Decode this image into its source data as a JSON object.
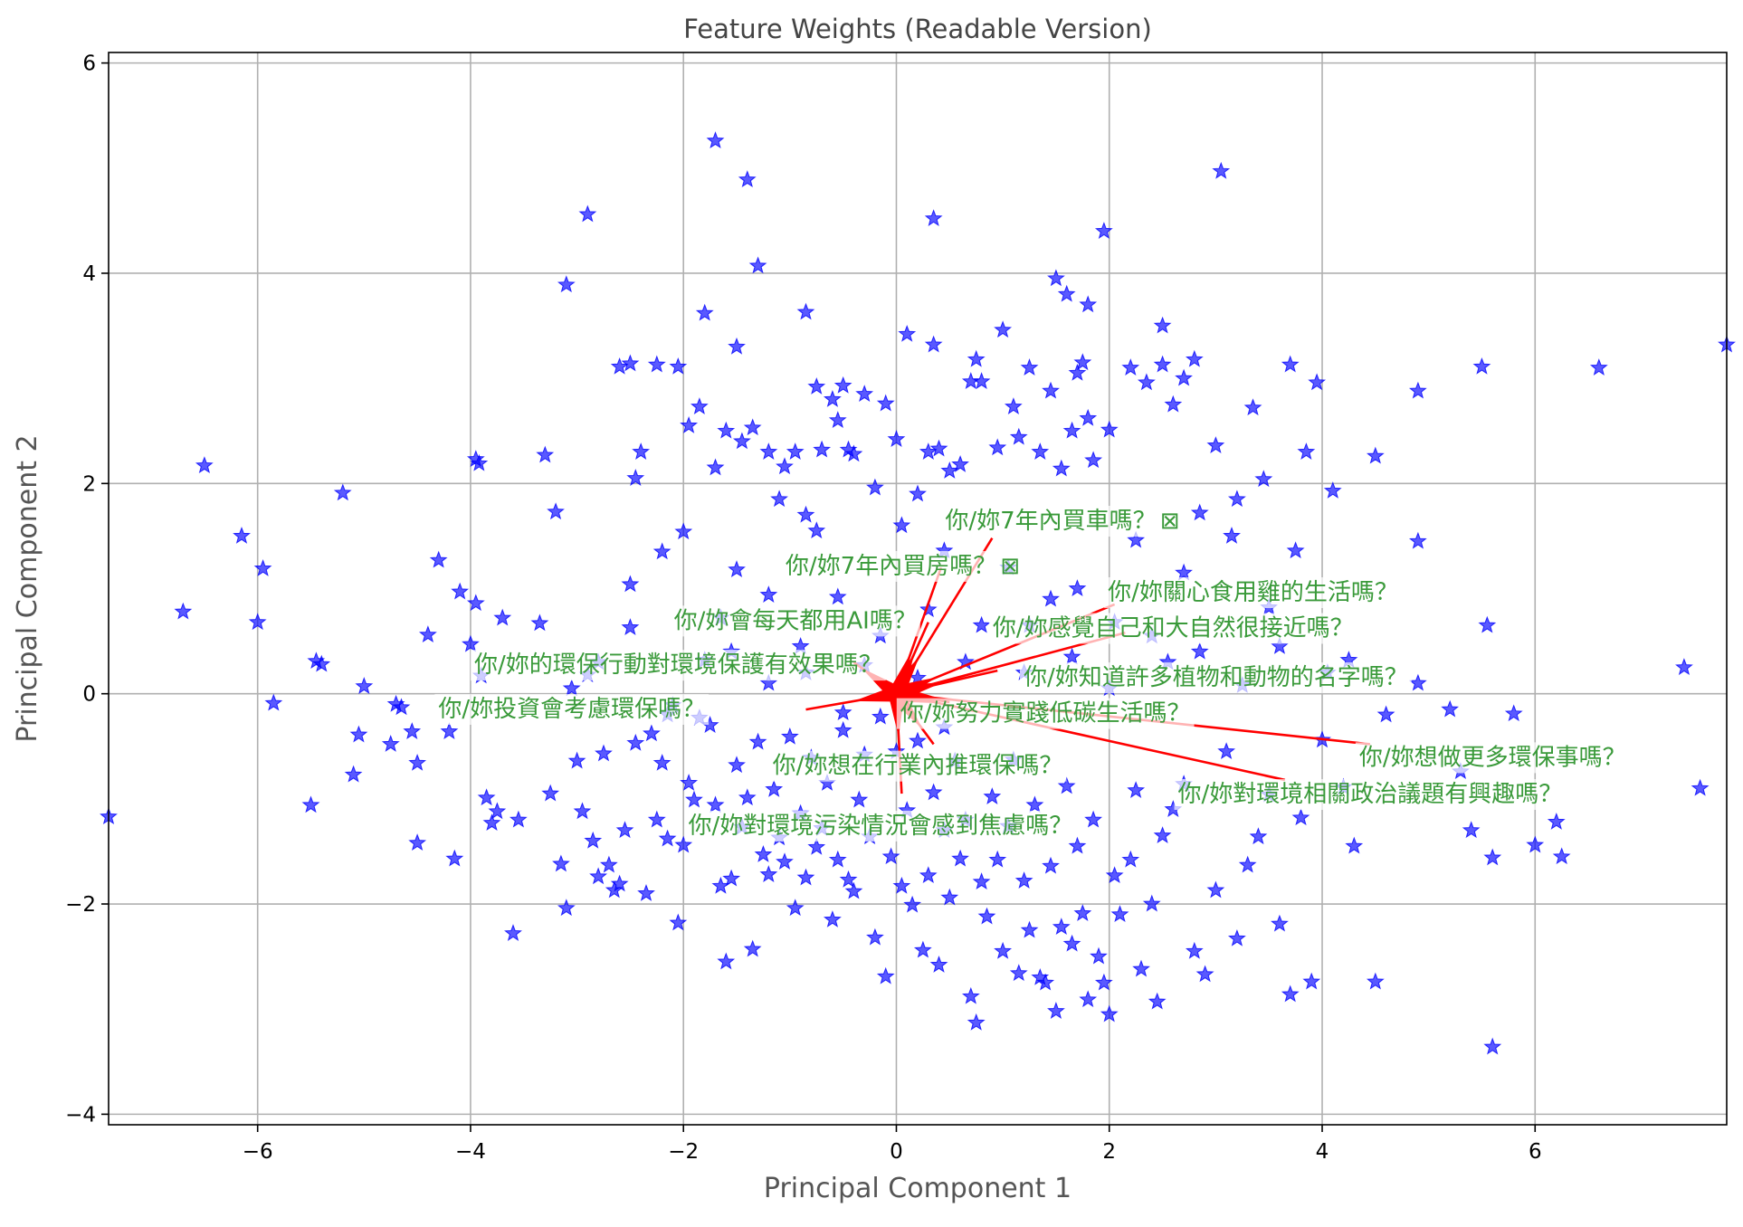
{
  "chart_data": {
    "type": "scatter",
    "title": "Feature Weights (Readable Version)",
    "xlabel": "Principal Component 1",
    "ylabel": "Principal Component 2",
    "xlim": [
      -7.4,
      7.8
    ],
    "ylim": [
      -4.1,
      6.1
    ],
    "xticks": [
      -6,
      -4,
      -2,
      0,
      2,
      4,
      6
    ],
    "yticks": [
      -4,
      -2,
      0,
      2,
      4,
      6
    ],
    "grid": true,
    "colors": {
      "points": "#0000ff",
      "arrows": "#ff0000",
      "labels": "#3a9a3a",
      "grid": "#b0b0b0"
    },
    "points_marker": "star",
    "points": [
      [
        -7.4,
        -1.17
      ],
      [
        -6.7,
        0.78
      ],
      [
        -6.5,
        2.17
      ],
      [
        -6.15,
        1.5
      ],
      [
        -6.0,
        0.68
      ],
      [
        -5.95,
        1.19
      ],
      [
        -5.85,
        -0.09
      ],
      [
        -5.5,
        -1.06
      ],
      [
        -5.45,
        0.31
      ],
      [
        -5.4,
        0.28
      ],
      [
        -5.2,
        1.91
      ],
      [
        -5.1,
        -0.77
      ],
      [
        -5.05,
        -0.39
      ],
      [
        -5.0,
        0.07
      ],
      [
        -4.75,
        -0.48
      ],
      [
        -4.7,
        -0.1
      ],
      [
        -4.65,
        -0.13
      ],
      [
        -4.55,
        -0.36
      ],
      [
        -4.5,
        -1.42
      ],
      [
        -4.5,
        -0.66
      ],
      [
        -4.4,
        0.56
      ],
      [
        -4.3,
        1.27
      ],
      [
        -4.2,
        -0.36
      ],
      [
        -4.15,
        -1.57
      ],
      [
        -4.1,
        0.97
      ],
      [
        -4.0,
        0.47
      ],
      [
        -3.95,
        0.86
      ],
      [
        -3.95,
        2.23
      ],
      [
        -3.92,
        2.19
      ],
      [
        -3.9,
        0.17
      ],
      [
        -3.85,
        -0.99
      ],
      [
        -3.8,
        -1.23
      ],
      [
        -3.75,
        -1.12
      ],
      [
        -3.7,
        0.72
      ],
      [
        -3.6,
        -2.28
      ],
      [
        -3.55,
        -1.2
      ],
      [
        -3.35,
        0.67
      ],
      [
        -3.3,
        2.27
      ],
      [
        -3.25,
        -0.95
      ],
      [
        -3.2,
        1.73
      ],
      [
        -3.15,
        -1.62
      ],
      [
        -3.1,
        -2.04
      ],
      [
        -3.05,
        0.05
      ],
      [
        -3.0,
        -0.64
      ],
      [
        -2.95,
        -1.12
      ],
      [
        -2.9,
        0.18
      ],
      [
        -2.85,
        -1.4
      ],
      [
        -2.8,
        -1.74
      ],
      [
        -2.75,
        -0.57
      ],
      [
        -2.7,
        -1.63
      ],
      [
        -2.65,
        -1.87
      ],
      [
        -2.6,
        -1.81
      ],
      [
        -2.55,
        -1.3
      ],
      [
        -2.5,
        1.04
      ],
      [
        -2.45,
        -0.47
      ],
      [
        -2.4,
        2.3
      ],
      [
        -2.35,
        -1.9
      ],
      [
        -2.3,
        -0.38
      ],
      [
        -2.25,
        -1.2
      ],
      [
        -2.2,
        -0.66
      ],
      [
        -2.15,
        -1.38
      ],
      [
        -2.1,
        -0.11
      ],
      [
        -2.05,
        -2.18
      ],
      [
        -2.0,
        -1.44
      ],
      [
        -1.95,
        -0.85
      ],
      [
        -1.9,
        -1.01
      ],
      [
        -1.85,
        -0.23
      ],
      [
        -1.8,
        0.32
      ],
      [
        -1.75,
        -0.3
      ],
      [
        -1.7,
        -1.06
      ],
      [
        -1.65,
        -1.83
      ],
      [
        -1.6,
        -2.55
      ],
      [
        -1.55,
        -1.76
      ],
      [
        -1.5,
        -0.68
      ],
      [
        -1.45,
        -1.27
      ],
      [
        -1.4,
        -0.99
      ],
      [
        -1.35,
        -2.43
      ],
      [
        -1.3,
        -0.46
      ],
      [
        -1.25,
        -1.53
      ],
      [
        -1.2,
        -1.72
      ],
      [
        -1.15,
        -0.91
      ],
      [
        -1.1,
        -1.37
      ],
      [
        -1.05,
        -1.6
      ],
      [
        -1.0,
        -0.41
      ],
      [
        -0.95,
        -2.04
      ],
      [
        -0.9,
        -1.14
      ],
      [
        -0.85,
        -1.75
      ],
      [
        -0.8,
        -0.61
      ],
      [
        -0.75,
        -1.46
      ],
      [
        -0.7,
        -1.28
      ],
      [
        -0.65,
        -0.85
      ],
      [
        -0.6,
        -2.15
      ],
      [
        -0.55,
        -1.58
      ],
      [
        -0.5,
        -0.18
      ],
      [
        -0.45,
        -1.77
      ],
      [
        -0.4,
        -1.88
      ],
      [
        -0.35,
        -1.01
      ],
      [
        -0.3,
        -0.58
      ],
      [
        -0.25,
        -1.36
      ],
      [
        -0.2,
        -2.32
      ],
      [
        -0.15,
        -0.22
      ],
      [
        -0.1,
        -2.69
      ],
      [
        -0.05,
        -1.55
      ],
      [
        0.0,
        -0.55
      ],
      [
        0.05,
        -1.83
      ],
      [
        0.1,
        -1.11
      ],
      [
        0.15,
        -2.01
      ],
      [
        0.2,
        -0.45
      ],
      [
        0.25,
        -2.44
      ],
      [
        0.3,
        -1.73
      ],
      [
        0.35,
        -0.94
      ],
      [
        0.4,
        -2.58
      ],
      [
        0.45,
        -1.3
      ],
      [
        0.5,
        -1.94
      ],
      [
        0.55,
        -0.64
      ],
      [
        0.6,
        -1.57
      ],
      [
        0.65,
        -1.2
      ],
      [
        0.7,
        -2.88
      ],
      [
        0.75,
        -3.13
      ],
      [
        0.8,
        -1.79
      ],
      [
        0.85,
        -2.12
      ],
      [
        0.9,
        -0.98
      ],
      [
        0.95,
        -1.58
      ],
      [
        1.0,
        -2.45
      ],
      [
        1.05,
        -1.26
      ],
      [
        1.1,
        -0.63
      ],
      [
        1.15,
        -2.66
      ],
      [
        1.2,
        -1.78
      ],
      [
        1.25,
        -2.25
      ],
      [
        1.3,
        -1.06
      ],
      [
        1.35,
        -2.7
      ],
      [
        1.4,
        -2.75
      ],
      [
        1.45,
        -1.64
      ],
      [
        1.5,
        -3.02
      ],
      [
        1.55,
        -2.22
      ],
      [
        1.6,
        -0.88
      ],
      [
        1.65,
        -2.38
      ],
      [
        1.7,
        -1.45
      ],
      [
        1.75,
        -2.09
      ],
      [
        1.8,
        -2.91
      ],
      [
        1.85,
        -1.2
      ],
      [
        1.9,
        -2.5
      ],
      [
        1.95,
        -2.75
      ],
      [
        2.0,
        -3.05
      ],
      [
        2.05,
        -1.73
      ],
      [
        2.1,
        -2.1
      ],
      [
        2.2,
        -1.58
      ],
      [
        2.25,
        -0.92
      ],
      [
        2.3,
        -2.62
      ],
      [
        2.4,
        -2.0
      ],
      [
        2.45,
        -2.93
      ],
      [
        2.5,
        -1.35
      ],
      [
        2.6,
        -1.1
      ],
      [
        2.7,
        -0.86
      ],
      [
        2.8,
        -2.45
      ],
      [
        2.9,
        -2.67
      ],
      [
        3.0,
        -1.87
      ],
      [
        3.1,
        -0.55
      ],
      [
        3.2,
        -2.33
      ],
      [
        3.3,
        -1.63
      ],
      [
        3.4,
        -1.36
      ],
      [
        3.5,
        -0.96
      ],
      [
        3.6,
        -2.19
      ],
      [
        3.7,
        -2.86
      ],
      [
        3.8,
        -1.18
      ],
      [
        3.9,
        -2.74
      ],
      [
        4.0,
        -0.44
      ],
      [
        4.2,
        -0.89
      ],
      [
        4.3,
        -1.45
      ],
      [
        4.5,
        -2.74
      ],
      [
        4.6,
        -0.2
      ],
      [
        5.2,
        -0.15
      ],
      [
        5.3,
        -0.74
      ],
      [
        5.4,
        -1.3
      ],
      [
        5.6,
        -3.36
      ],
      [
        5.6,
        -1.56
      ],
      [
        5.8,
        -0.19
      ],
      [
        6.0,
        -1.44
      ],
      [
        6.2,
        -1.22
      ],
      [
        6.25,
        -1.55
      ],
      [
        7.4,
        0.25
      ],
      [
        7.55,
        -0.9
      ],
      [
        -2.9,
        4.56
      ],
      [
        -3.1,
        3.89
      ],
      [
        -2.6,
        3.11
      ],
      [
        -2.5,
        3.14
      ],
      [
        -2.25,
        3.13
      ],
      [
        -2.05,
        3.11
      ],
      [
        -1.95,
        2.55
      ],
      [
        -1.85,
        2.73
      ],
      [
        -1.8,
        3.62
      ],
      [
        -1.7,
        2.15
      ],
      [
        -1.6,
        2.5
      ],
      [
        -1.5,
        3.3
      ],
      [
        -1.45,
        2.4
      ],
      [
        -1.35,
        2.53
      ],
      [
        -1.3,
        4.07
      ],
      [
        -1.2,
        2.3
      ],
      [
        -1.1,
        1.85
      ],
      [
        -1.05,
        2.16
      ],
      [
        -0.95,
        2.3
      ],
      [
        -0.85,
        1.7
      ],
      [
        -0.85,
        3.63
      ],
      [
        -0.75,
        2.92
      ],
      [
        -0.7,
        2.32
      ],
      [
        -0.6,
        2.8
      ],
      [
        -0.55,
        2.6
      ],
      [
        -0.5,
        2.93
      ],
      [
        -0.45,
        2.32
      ],
      [
        -0.4,
        2.28
      ],
      [
        -0.3,
        2.85
      ],
      [
        -0.2,
        1.96
      ],
      [
        -0.1,
        2.76
      ],
      [
        0.0,
        2.42
      ],
      [
        0.1,
        3.42
      ],
      [
        0.2,
        1.9
      ],
      [
        0.3,
        2.3
      ],
      [
        0.35,
        3.32
      ],
      [
        0.4,
        2.33
      ],
      [
        0.5,
        2.12
      ],
      [
        0.6,
        2.18
      ],
      [
        0.7,
        2.97
      ],
      [
        0.75,
        3.18
      ],
      [
        0.8,
        2.97
      ],
      [
        0.95,
        2.34
      ],
      [
        1.0,
        3.46
      ],
      [
        1.1,
        2.73
      ],
      [
        1.15,
        2.44
      ],
      [
        1.25,
        3.1
      ],
      [
        1.35,
        2.3
      ],
      [
        1.45,
        2.88
      ],
      [
        1.55,
        2.14
      ],
      [
        1.65,
        2.5
      ],
      [
        1.7,
        3.05
      ],
      [
        1.75,
        3.15
      ],
      [
        1.8,
        2.62
      ],
      [
        1.85,
        2.22
      ],
      [
        2.0,
        2.51
      ],
      [
        2.2,
        3.1
      ],
      [
        2.35,
        2.96
      ],
      [
        2.5,
        3.13
      ],
      [
        2.6,
        2.75
      ],
      [
        2.7,
        3.0
      ],
      [
        2.8,
        3.18
      ],
      [
        3.0,
        2.36
      ],
      [
        3.2,
        1.85
      ],
      [
        3.35,
        2.72
      ],
      [
        3.45,
        2.04
      ],
      [
        3.7,
        3.13
      ],
      [
        3.85,
        2.3
      ],
      [
        3.95,
        2.96
      ],
      [
        4.1,
        1.93
      ],
      [
        4.5,
        2.26
      ],
      [
        4.9,
        2.88
      ],
      [
        5.5,
        3.11
      ],
      [
        6.6,
        3.1
      ],
      [
        7.8,
        3.32
      ],
      [
        -1.7,
        5.26
      ],
      [
        -1.4,
        4.89
      ],
      [
        0.35,
        4.52
      ],
      [
        1.95,
        4.4
      ],
      [
        3.05,
        4.97
      ],
      [
        1.5,
        3.95
      ],
      [
        1.6,
        3.8
      ],
      [
        1.8,
        3.7
      ],
      [
        2.5,
        3.5
      ],
      [
        -2.45,
        2.05
      ],
      [
        -2.2,
        1.35
      ],
      [
        -2.0,
        1.54
      ],
      [
        -1.65,
        0.72
      ],
      [
        -1.5,
        1.18
      ],
      [
        -1.2,
        0.94
      ],
      [
        -0.9,
        0.45
      ],
      [
        -0.75,
        1.55
      ],
      [
        -0.55,
        0.92
      ],
      [
        -0.3,
        0.27
      ],
      [
        0.05,
        1.6
      ],
      [
        0.3,
        0.8
      ],
      [
        0.45,
        1.36
      ],
      [
        0.65,
        0.3
      ],
      [
        1.05,
        1.2
      ],
      [
        1.25,
        0.65
      ],
      [
        1.45,
        0.9
      ],
      [
        1.7,
        1.0
      ],
      [
        2.05,
        0.68
      ],
      [
        2.25,
        1.46
      ],
      [
        2.55,
        0.3
      ],
      [
        2.7,
        1.15
      ],
      [
        2.85,
        1.72
      ],
      [
        3.15,
        1.5
      ],
      [
        3.5,
        0.82
      ],
      [
        3.75,
        1.36
      ],
      [
        4.05,
        0.2
      ],
      [
        4.9,
        1.45
      ],
      [
        5.55,
        0.65
      ],
      [
        -2.8,
        0.3
      ],
      [
        -2.5,
        0.63
      ],
      [
        -2.15,
        -0.2
      ],
      [
        -1.55,
        0.4
      ],
      [
        -1.2,
        0.1
      ],
      [
        -0.85,
        0.2
      ],
      [
        -0.5,
        -0.35
      ],
      [
        -0.15,
        0.55
      ],
      [
        0.2,
        0.15
      ],
      [
        0.45,
        -0.32
      ],
      [
        0.8,
        0.65
      ],
      [
        1.2,
        0.2
      ],
      [
        1.65,
        0.35
      ],
      [
        2.0,
        0.05
      ],
      [
        2.4,
        0.55
      ],
      [
        2.85,
        0.4
      ],
      [
        3.25,
        0.08
      ],
      [
        3.6,
        0.45
      ],
      [
        4.25,
        0.32
      ],
      [
        4.9,
        0.1
      ]
    ],
    "vectors": [
      {
        "label": "你/妳7年內買車嗎？",
        "dx": 0.9,
        "dy": 1.48,
        "label_x": 1.45,
        "label_y": 1.65,
        "glyph": "⊠"
      },
      {
        "label": "你/妳7年內買房嗎？",
        "dx": 0.42,
        "dy": 1.2,
        "label_x": -0.05,
        "label_y": 1.22,
        "glyph": "⊠"
      },
      {
        "label": "你/妳關心食用雞的生活嗎？",
        "dx": 2.05,
        "dy": 0.85,
        "label_x": 3.35,
        "label_y": 0.97,
        "glyph": ""
      },
      {
        "label": "你/妳會每天都用AI嗎？",
        "dx": 0.3,
        "dy": 0.68,
        "label_x": -0.95,
        "label_y": 0.7,
        "glyph": ""
      },
      {
        "label": "你/妳感覺自己和大自然很接近嗎？",
        "dx": 2.15,
        "dy": 0.58,
        "label_x": 2.6,
        "label_y": 0.63,
        "glyph": ""
      },
      {
        "label": "你/妳的環保行動對環境保護有效果嗎？",
        "dx": -0.4,
        "dy": 0.3,
        "label_x": -2.05,
        "label_y": 0.28,
        "glyph": ""
      },
      {
        "label": "你/妳知道許多植物和動物的名字嗎？",
        "dx": 0.95,
        "dy": 0.22,
        "label_x": 3.0,
        "label_y": 0.16,
        "glyph": ""
      },
      {
        "label": "你/妳投資會考慮環保嗎？",
        "dx": -0.85,
        "dy": -0.15,
        "label_x": -3.05,
        "label_y": -0.14,
        "glyph": ""
      },
      {
        "label": "你/妳努力實踐低碳生活嗎？",
        "dx": 0.5,
        "dy": -0.08,
        "label_x": 1.4,
        "label_y": -0.18,
        "glyph": ""
      },
      {
        "label": "你/妳想做更多環保事嗎？",
        "dx": 4.45,
        "dy": -0.48,
        "label_x": 5.6,
        "label_y": -0.6,
        "glyph": ""
      },
      {
        "label": "你/妳想在行業內推環保嗎？",
        "dx": 0.35,
        "dy": -0.48,
        "label_x": 0.2,
        "label_y": -0.68,
        "glyph": ""
      },
      {
        "label": "你/妳對環境相關政治議題有興趣嗎？",
        "dx": 3.65,
        "dy": -0.82,
        "label_x": 4.45,
        "label_y": -0.95,
        "glyph": ""
      },
      {
        "label": "你/妳對環境污染情況會感到焦慮嗎？",
        "dx": 0.05,
        "dy": -0.95,
        "label_x": -0.15,
        "label_y": -1.25,
        "glyph": ""
      }
    ]
  }
}
